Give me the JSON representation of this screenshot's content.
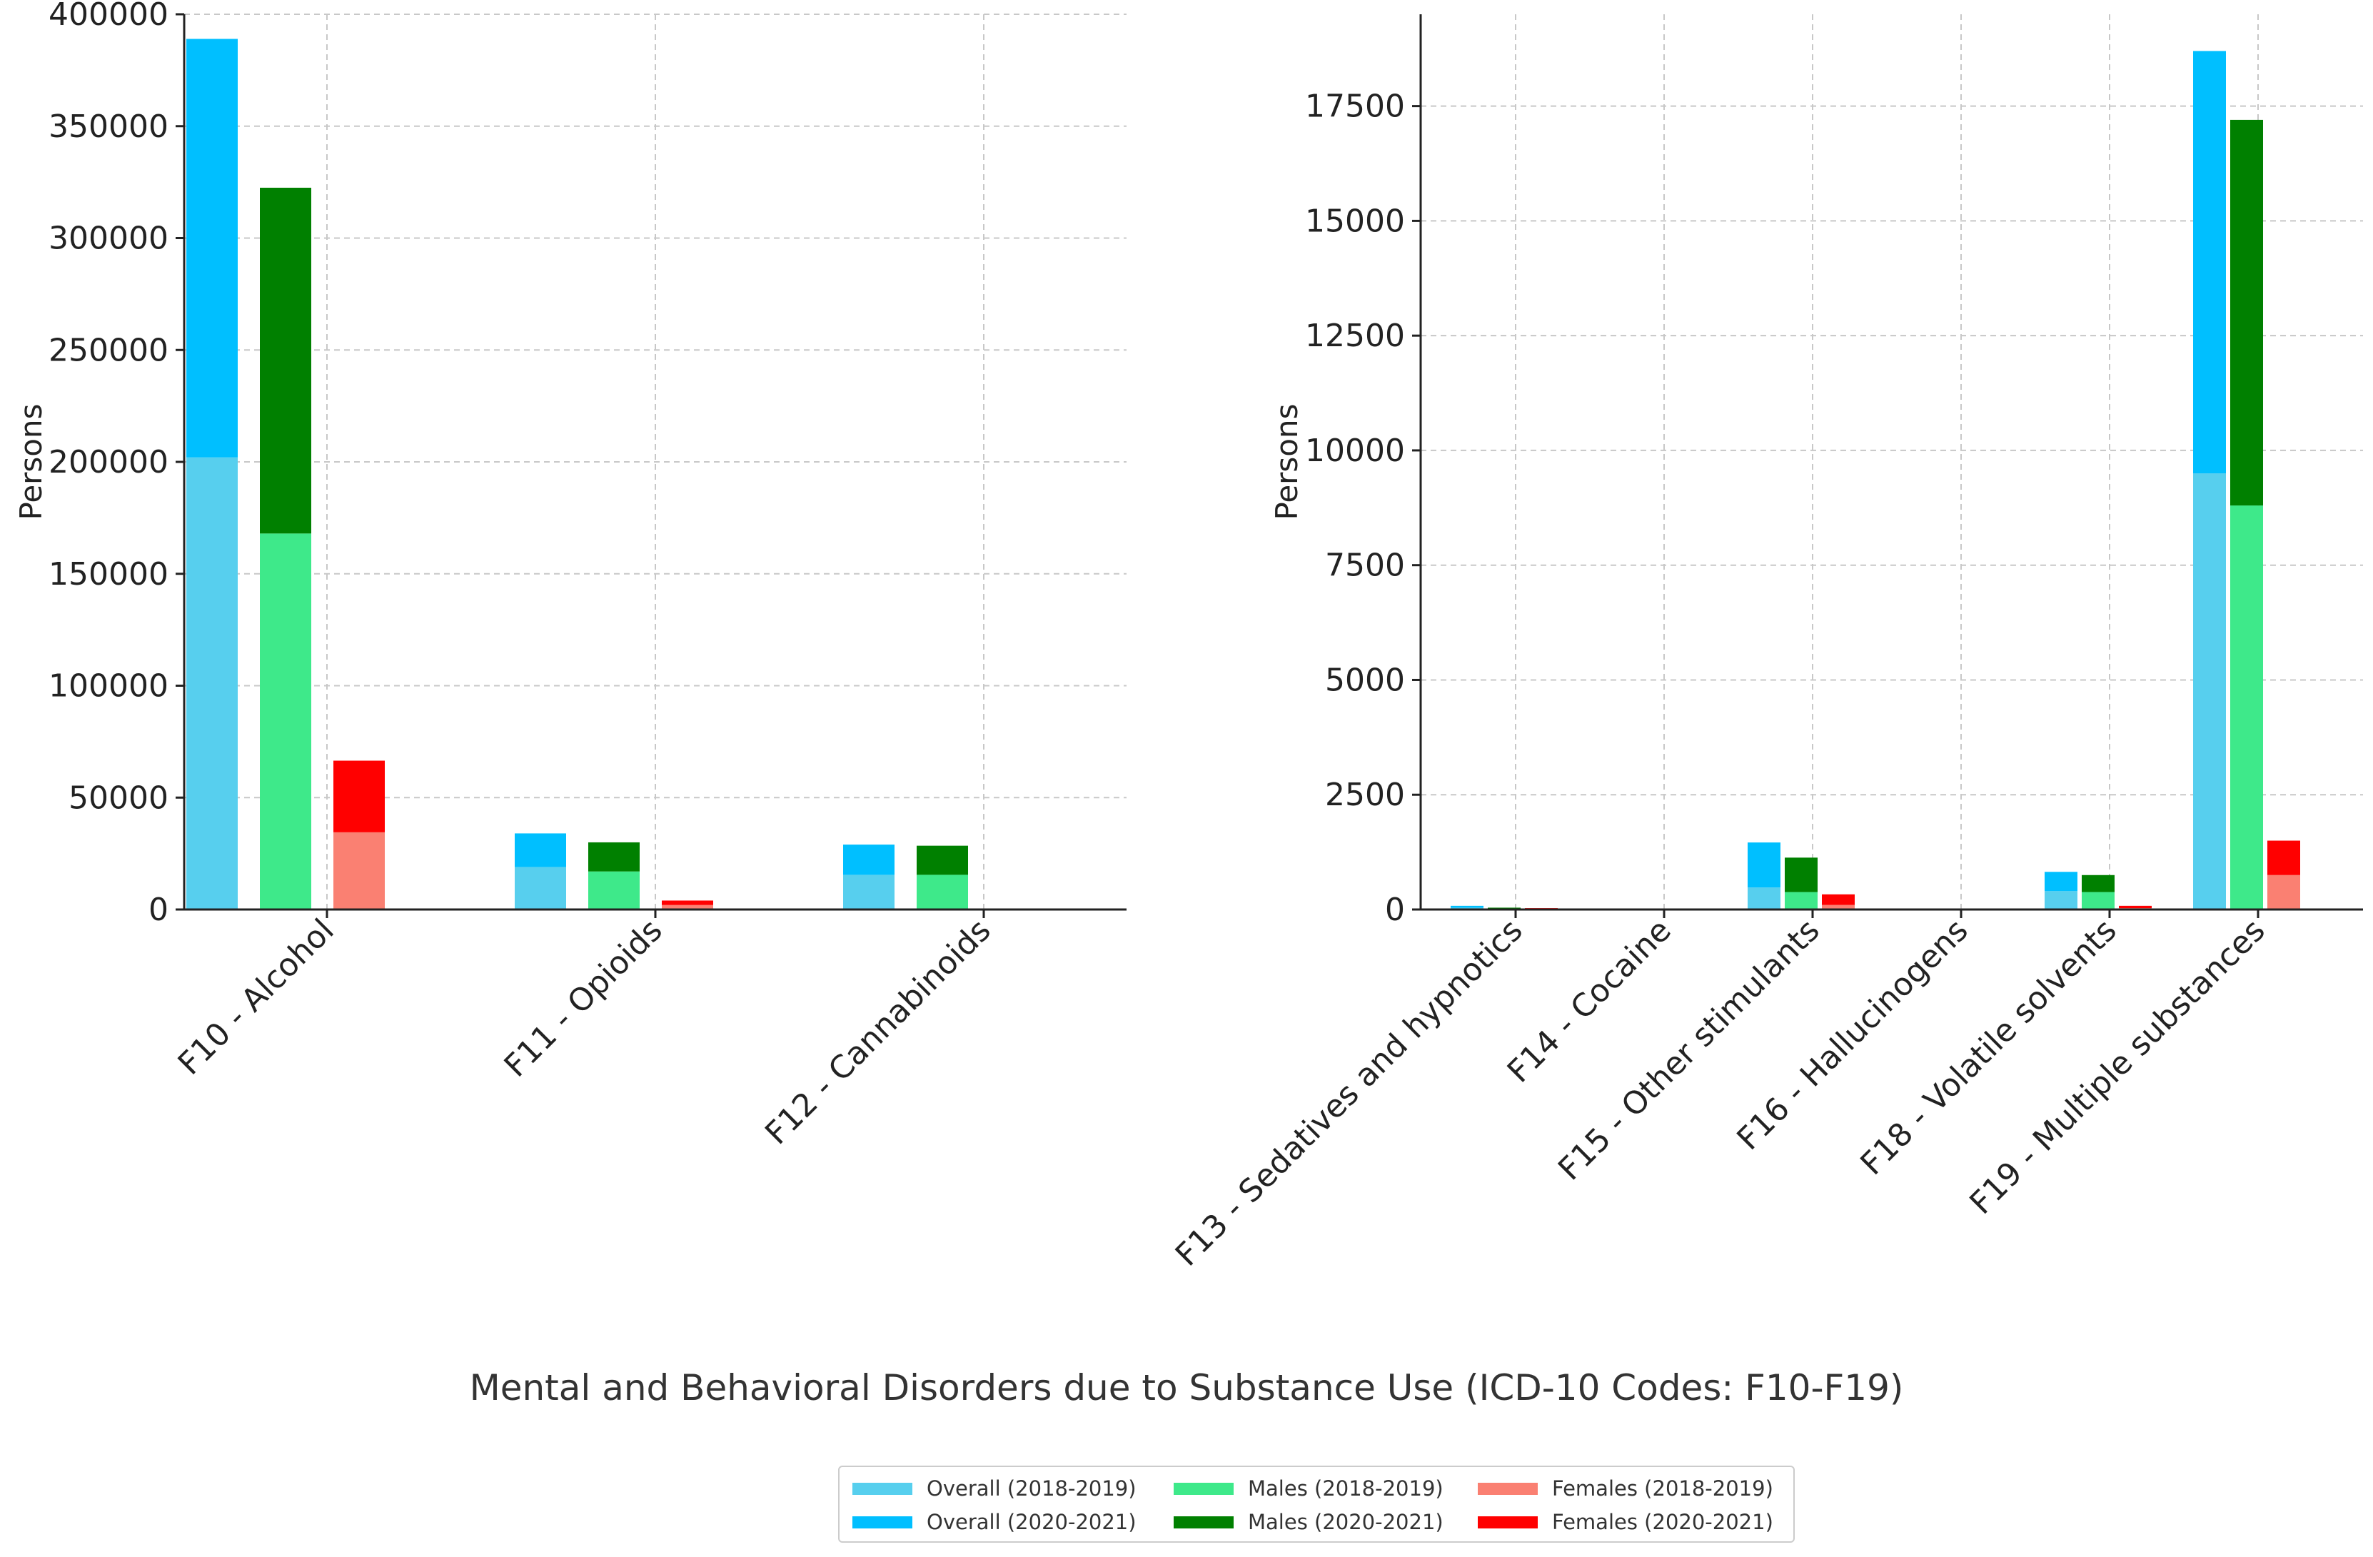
{
  "title": "Mental and Behavioral Disorders due to Substance Use (ICD-10 Codes: F10-F19)",
  "colors": {
    "overall_2018_2019": "#57cfee",
    "overall_2020_2021": "#00bfff",
    "males_2018_2019": "#3ee98a",
    "males_2020_2021": "#008000",
    "females_2018_2019": "#fa8072",
    "females_2020_2021": "#ff0000"
  },
  "legend": [
    {
      "key": "overall_2018_2019",
      "label": "Overall (2018-2019)"
    },
    {
      "key": "overall_2020_2021",
      "label": "Overall (2020-2021)"
    },
    {
      "key": "males_2018_2019",
      "label": "Males (2018-2019)"
    },
    {
      "key": "males_2020_2021",
      "label": "Males (2020-2021)"
    },
    {
      "key": "females_2018_2019",
      "label": "Females (2018-2019)"
    },
    {
      "key": "females_2020_2021",
      "label": "Females (2020-2021)"
    }
  ],
  "chart_data": [
    {
      "type": "bar",
      "stacked": true,
      "ylabel": "Persons",
      "ylim": [
        0,
        400000
      ],
      "yticks": [
        0,
        50000,
        100000,
        150000,
        200000,
        250000,
        300000,
        350000,
        400000
      ],
      "grid": true,
      "categories": [
        "F10 - Alcohol",
        "F11 - Opioids",
        "F12 - Cannabinoids"
      ],
      "groups": [
        {
          "name": "Overall",
          "series": [
            {
              "name": "Overall (2018-2019)",
              "key": "overall_2018_2019",
              "values": [
                202000,
                19000,
                15500
              ]
            },
            {
              "name": "Overall (2020-2021)",
              "key": "overall_2020_2021",
              "values": [
                187000,
                15000,
                13500
              ]
            }
          ]
        },
        {
          "name": "Males",
          "series": [
            {
              "name": "Males (2018-2019)",
              "key": "males_2018_2019",
              "values": [
                168000,
                17000,
                15500
              ]
            },
            {
              "name": "Males (2020-2021)",
              "key": "males_2020_2021",
              "values": [
                154500,
                13000,
                13000
              ]
            }
          ]
        },
        {
          "name": "Females",
          "series": [
            {
              "name": "Females (2018-2019)",
              "key": "females_2018_2019",
              "values": [
                34500,
                2000,
                0
              ]
            },
            {
              "name": "Females (2020-2021)",
              "key": "females_2020_2021",
              "values": [
                32000,
                2000,
                0
              ]
            }
          ]
        }
      ]
    },
    {
      "type": "bar",
      "stacked": true,
      "ylabel": "Persons",
      "ylim": [
        0,
        19500
      ],
      "yticks": [
        0,
        2500,
        5000,
        7500,
        10000,
        12500,
        15000,
        17500
      ],
      "grid": true,
      "categories": [
        "F13 - Sedatives and hypnotics",
        "F14 - Cocaine",
        "F15 - Other stimulants",
        "F16 - Hallucinogens",
        "F18 - Volatile solvents",
        "F19 - Multiple substances"
      ],
      "groups": [
        {
          "name": "Overall",
          "series": [
            {
              "name": "Overall (2018-2019)",
              "key": "overall_2018_2019",
              "values": [
                40,
                0,
                480,
                0,
                400,
                9500
              ]
            },
            {
              "name": "Overall (2020-2021)",
              "key": "overall_2020_2021",
              "values": [
                40,
                0,
                980,
                0,
                420,
                9200
              ]
            }
          ]
        },
        {
          "name": "Males",
          "series": [
            {
              "name": "Males (2018-2019)",
              "key": "males_2018_2019",
              "values": [
                20,
                0,
                380,
                0,
                380,
                8800
              ]
            },
            {
              "name": "Males (2020-2021)",
              "key": "males_2020_2021",
              "values": [
                20,
                0,
                750,
                0,
                370,
                8400
              ]
            }
          ]
        },
        {
          "name": "Females",
          "series": [
            {
              "name": "Females (2018-2019)",
              "key": "females_2018_2019",
              "values": [
                15,
                0,
                100,
                0,
                30,
                750
              ]
            },
            {
              "name": "Females (2020-2021)",
              "key": "females_2020_2021",
              "values": [
                15,
                0,
                230,
                0,
                50,
                750
              ]
            }
          ]
        }
      ]
    }
  ]
}
